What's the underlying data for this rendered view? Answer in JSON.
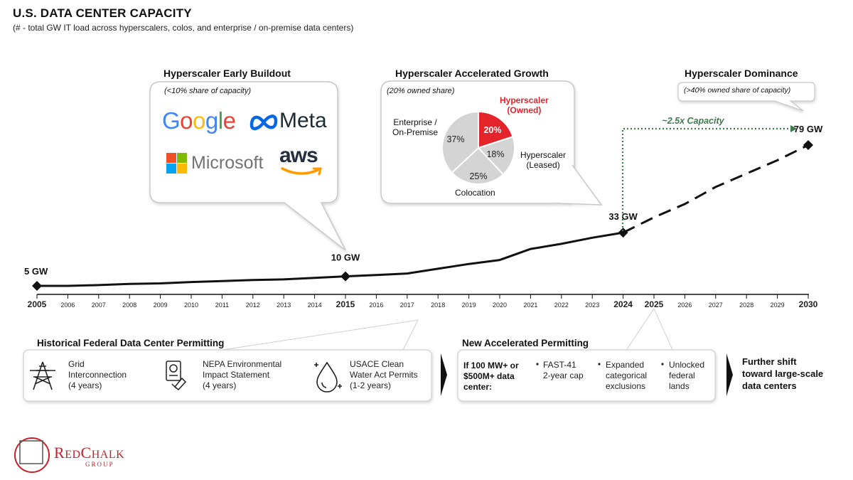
{
  "header": {
    "title": "U.S. DATA CENTER CAPACITY",
    "subtitle": "(# - total GW IT load across hyperscalers, colos, and enterprise / on-premise data centers)"
  },
  "chart_data": {
    "type": "line",
    "title": "U.S. DATA CENTER CAPACITY",
    "unit": "GW",
    "x": [
      2005,
      2006,
      2007,
      2008,
      2009,
      2010,
      2011,
      2012,
      2013,
      2014,
      2015,
      2016,
      2017,
      2018,
      2019,
      2020,
      2021,
      2022,
      2023,
      2024,
      2025,
      2026,
      2027,
      2028,
      2029,
      2030
    ],
    "tick_labels": [
      "2005",
      "2006",
      "2007",
      "2008",
      "2009",
      "2010",
      "2011",
      "2012",
      "2013",
      "2014",
      "2015",
      "2016",
      "2017",
      "2018",
      "2019",
      "2020",
      "2021",
      "2022",
      "2023",
      "2024",
      "2025",
      "2026",
      "2027",
      "2028",
      "2029",
      "2030"
    ],
    "bold_ticks": [
      "2005",
      "2015",
      "2024",
      "2025",
      "2030"
    ],
    "series": [
      {
        "name": "Historical",
        "style": "solid",
        "x": [
          2005,
          2006,
          2007,
          2008,
          2009,
          2010,
          2011,
          2012,
          2013,
          2014,
          2015,
          2016,
          2017,
          2018,
          2019,
          2020,
          2021,
          2022,
          2023,
          2024
        ],
        "values": [
          5,
          5,
          5.4,
          6,
          6.3,
          7,
          7.5,
          8.1,
          8.4,
          9.2,
          10,
          10.7,
          11.5,
          14,
          16.5,
          18.6,
          24.4,
          27.1,
          30.3,
          33
        ]
      },
      {
        "name": "Projected",
        "style": "dashed",
        "x": [
          2024,
          2025,
          2026,
          2027,
          2028,
          2029,
          2030
        ],
        "values": [
          33,
          41,
          48,
          57,
          64,
          71,
          79
        ]
      }
    ],
    "markers": [
      {
        "x": 2005,
        "y": 5,
        "label": "5 GW"
      },
      {
        "x": 2015,
        "y": 10,
        "label": "10 GW"
      },
      {
        "x": 2024,
        "y": 33,
        "label": "33 GW"
      },
      {
        "x": 2030,
        "y": 79,
        "label": "79 GW"
      }
    ],
    "growth_annotation": "~2.5x Capacity",
    "ylim": [
      0,
      85
    ]
  },
  "phases": {
    "early": {
      "title": "Hyperscaler Early Buildout",
      "note": "(<10% share of capacity)",
      "logos": {
        "google": "Google",
        "meta": "Meta",
        "microsoft": "Microsoft",
        "aws": "aws"
      }
    },
    "accelerated": {
      "title": "Hyperscaler Accelerated Growth",
      "note": "(20% owned share)",
      "pie": {
        "type": "pie",
        "slices": [
          {
            "name": "Hyperscaler (Owned)",
            "value": 20,
            "label": "20%",
            "color": "#e3242b"
          },
          {
            "name": "Hyperscaler (Leased)",
            "value": 18,
            "label": "18%",
            "color": "#d4d4d4"
          },
          {
            "name": "Colocation",
            "value": 25,
            "label": "25%",
            "color": "#d4d4d4"
          },
          {
            "name": "Enterprise / On-Premise",
            "value": 37,
            "label": "37%",
            "color": "#d4d4d4"
          }
        ],
        "labels": {
          "owned_1": "Hyperscaler",
          "owned_2": "(Owned)",
          "leased_1": "Hyperscaler",
          "leased_2": "(Leased)",
          "colo": "Colocation",
          "enterprise_1": "Enterprise /",
          "enterprise_2": "On-Premise"
        }
      }
    },
    "dominance": {
      "title": "Hyperscaler Dominance",
      "note": "(>40% owned share of capacity)"
    }
  },
  "permitting": {
    "historical": {
      "title": "Historical Federal Data Center Permitting",
      "items": [
        {
          "line1": "Grid",
          "line2": "Interconnection",
          "line3": "(4 years)"
        },
        {
          "line1": "NEPA Environmental",
          "line2": "Impact Statement",
          "line3": "(4 years)"
        },
        {
          "line1": "USACE Clean",
          "line2": "Water Act Permits",
          "line3": "(1-2 years)"
        }
      ]
    },
    "new": {
      "title": "New Accelerated Permitting",
      "condition": [
        "If 100 MW+ or",
        "$500M+ data",
        "center:"
      ],
      "bullets": [
        {
          "line1": "FAST-41",
          "line2": "2-year cap",
          "line3": ""
        },
        {
          "line1": "Expanded",
          "line2": "categorical",
          "line3": "exclusions"
        },
        {
          "line1": "Unlocked",
          "line2": "federal",
          "line3": "lands"
        }
      ]
    },
    "outcome": [
      "Further shift",
      "toward large-scale",
      "data centers"
    ]
  },
  "brand": {
    "name_big1": "R",
    "name_small1": "ED",
    "name_big2": "C",
    "name_small2": "HALK",
    "sub": "GROUP",
    "color": "#c8202a"
  },
  "colors": {
    "accent_red": "#e3242b",
    "green": "#3f7a4e",
    "line": "#111111",
    "grey": "#d4d4d4"
  }
}
